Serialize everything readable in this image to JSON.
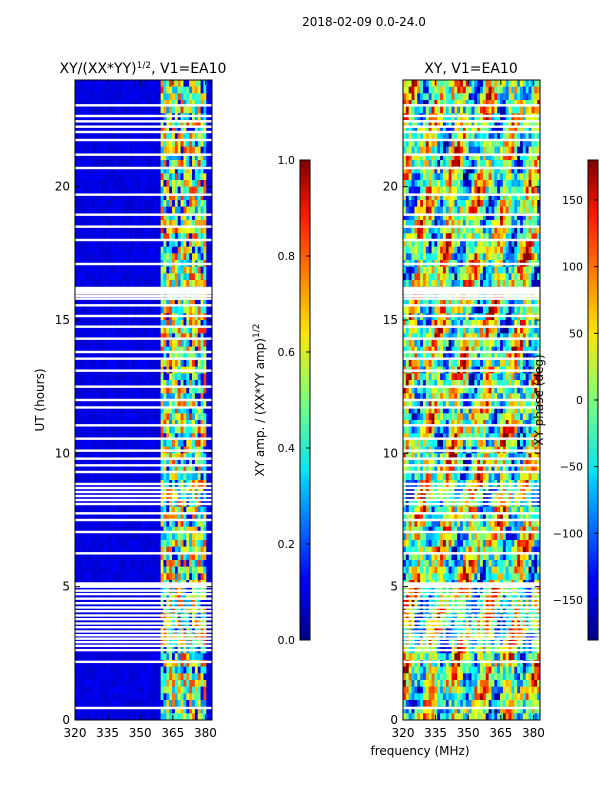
{
  "figure_title": "2018-02-09 0.0-24.0",
  "shared_xlabel": "frequency (MHz)",
  "chart_data": [
    {
      "type": "heatmap",
      "title": "XY/(XX*YY)",
      "title_sup": "1/2",
      "title_suffix": ", V1=EA10",
      "xlabel": "",
      "ylabel": "UT (hours)",
      "xlim": [
        320,
        383
      ],
      "ylim": [
        0,
        24
      ],
      "xticks": [
        320,
        335,
        350,
        365,
        380
      ],
      "yticks": [
        0,
        5,
        10,
        15,
        20
      ],
      "signal_band_mhz": [
        360,
        381
      ],
      "colorbar": {
        "label": "XY amp. / (XX*YY amp)",
        "label_sup": "1/2",
        "range": [
          0.0,
          1.0
        ],
        "ticks": [
          "0.0",
          "0.2",
          "0.4",
          "0.6",
          "0.8",
          "1.0"
        ],
        "tick_values": [
          0.0,
          0.2,
          0.4,
          0.6,
          0.8,
          1.0
        ]
      }
    },
    {
      "type": "heatmap",
      "title": "XY, V1=EA10",
      "xlabel": "frequency (MHz)",
      "ylabel": "",
      "xlim": [
        320,
        383
      ],
      "ylim": [
        0,
        24
      ],
      "xticks": [
        320,
        335,
        350,
        365,
        380
      ],
      "yticks": [
        0,
        5,
        10,
        15,
        20
      ],
      "colorbar": {
        "label": "XY phase (deg)",
        "range": [
          -180,
          180
        ],
        "ticks": [
          "−150",
          "−100",
          "−50",
          "0",
          "50",
          "100",
          "150"
        ],
        "tick_values": [
          -150,
          -100,
          -50,
          0,
          50,
          100,
          150
        ]
      }
    }
  ],
  "flagged_hours": [
    0.45,
    2.18,
    2.62,
    2.78,
    2.92,
    3.05,
    3.18,
    3.32,
    3.48,
    3.62,
    3.78,
    3.92,
    4.08,
    4.22,
    4.38,
    4.55,
    4.72,
    4.85,
    5.0,
    5.05,
    5.12,
    6.25,
    7.05,
    7.5,
    7.75,
    8.1,
    8.25,
    8.4,
    8.55,
    8.7,
    8.85,
    9.3,
    9.55,
    9.8,
    10.1,
    10.55,
    11.05,
    11.72,
    12.0,
    12.5,
    13.1,
    13.55,
    13.8,
    14.3,
    14.75,
    15.15,
    15.55,
    15.8,
    15.9,
    16.0,
    16.05,
    16.12,
    16.2,
    17.1,
    18.0,
    18.5,
    18.95,
    19.7,
    20.7,
    21.2,
    21.75,
    22.05,
    22.25,
    22.45,
    22.65,
    23.05
  ]
}
